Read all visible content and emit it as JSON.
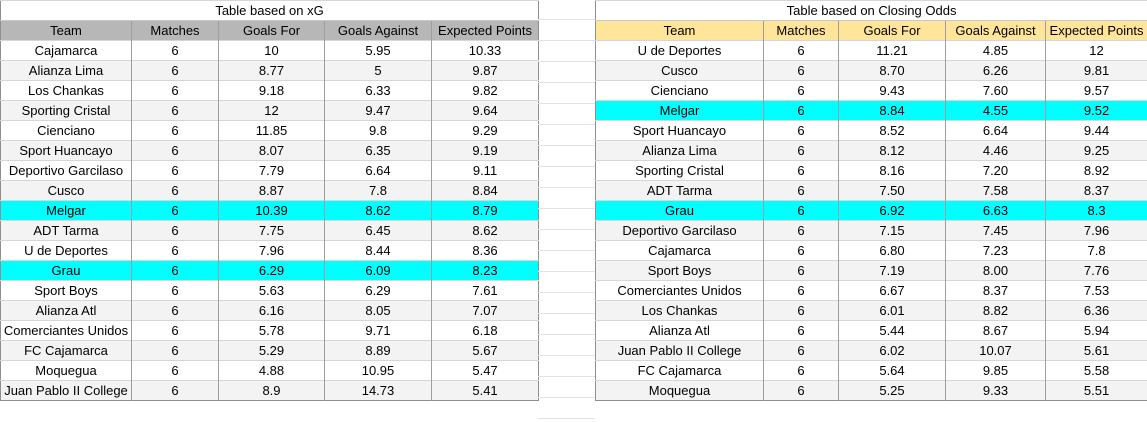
{
  "colors": {
    "highlight": "#00ffff",
    "stripe": "#f3f3f3",
    "xg_header_bg": "#b7b7b7",
    "odds_header_bg": "#ffe599"
  },
  "tables": [
    {
      "title": "Table based on xG",
      "header_bg": "#b7b7b7",
      "columns": [
        "Team",
        "Matches",
        "Goals For",
        "Goals Against",
        "Expected Points"
      ],
      "rows": [
        {
          "team": "Cajamarca",
          "matches": "6",
          "goals_for": "10",
          "goals_against": "5.95",
          "expected_points": "10.33",
          "highlight": false
        },
        {
          "team": "Alianza Lima",
          "matches": "6",
          "goals_for": "8.77",
          "goals_against": "5",
          "expected_points": "9.87",
          "highlight": false
        },
        {
          "team": "Los Chankas",
          "matches": "6",
          "goals_for": "9.18",
          "goals_against": "6.33",
          "expected_points": "9.82",
          "highlight": false
        },
        {
          "team": "Sporting Cristal",
          "matches": "6",
          "goals_for": "12",
          "goals_against": "9.47",
          "expected_points": "9.64",
          "highlight": false
        },
        {
          "team": "Cienciano",
          "matches": "6",
          "goals_for": "11.85",
          "goals_against": "9.8",
          "expected_points": "9.29",
          "highlight": false
        },
        {
          "team": "Sport Huancayo",
          "matches": "6",
          "goals_for": "8.07",
          "goals_against": "6.35",
          "expected_points": "9.19",
          "highlight": false
        },
        {
          "team": "Deportivo Garcilaso",
          "matches": "6",
          "goals_for": "7.79",
          "goals_against": "6.64",
          "expected_points": "9.11",
          "highlight": false
        },
        {
          "team": "Cusco",
          "matches": "6",
          "goals_for": "8.87",
          "goals_against": "7.8",
          "expected_points": "8.84",
          "highlight": false
        },
        {
          "team": "Melgar",
          "matches": "6",
          "goals_for": "10.39",
          "goals_against": "8.62",
          "expected_points": "8.79",
          "highlight": true
        },
        {
          "team": "ADT Tarma",
          "matches": "6",
          "goals_for": "7.75",
          "goals_against": "6.45",
          "expected_points": "8.62",
          "highlight": false
        },
        {
          "team": "U de Deportes",
          "matches": "6",
          "goals_for": "7.96",
          "goals_against": "8.44",
          "expected_points": "8.36",
          "highlight": false
        },
        {
          "team": "Grau",
          "matches": "6",
          "goals_for": "6.29",
          "goals_against": "6.09",
          "expected_points": "8.23",
          "highlight": true
        },
        {
          "team": "Sport Boys",
          "matches": "6",
          "goals_for": "5.63",
          "goals_against": "6.29",
          "expected_points": "7.61",
          "highlight": false
        },
        {
          "team": "Alianza Atl",
          "matches": "6",
          "goals_for": "6.16",
          "goals_against": "8.05",
          "expected_points": "7.07",
          "highlight": false
        },
        {
          "team": "Comerciantes Unidos",
          "matches": "6",
          "goals_for": "5.78",
          "goals_against": "9.71",
          "expected_points": "6.18",
          "highlight": false
        },
        {
          "team": "FC Cajamarca",
          "matches": "6",
          "goals_for": "5.29",
          "goals_against": "8.89",
          "expected_points": "5.67",
          "highlight": false
        },
        {
          "team": "Moquegua",
          "matches": "6",
          "goals_for": "4.88",
          "goals_against": "10.95",
          "expected_points": "5.47",
          "highlight": false
        },
        {
          "team": "Juan Pablo II College",
          "matches": "6",
          "goals_for": "8.9",
          "goals_against": "14.73",
          "expected_points": "5.41",
          "highlight": false
        }
      ]
    },
    {
      "title": "Table based on Closing Odds",
      "header_bg": "#ffe599",
      "columns": [
        "Team",
        "Matches",
        "Goals For",
        "Goals Against",
        "Expected Points"
      ],
      "rows": [
        {
          "team": "U de Deportes",
          "matches": "6",
          "goals_for": "11.21",
          "goals_against": "4.85",
          "expected_points": "12",
          "highlight": false
        },
        {
          "team": "Cusco",
          "matches": "6",
          "goals_for": "8.70",
          "goals_against": "6.26",
          "expected_points": "9.81",
          "highlight": false
        },
        {
          "team": "Cienciano",
          "matches": "6",
          "goals_for": "9.43",
          "goals_against": "7.60",
          "expected_points": "9.57",
          "highlight": false
        },
        {
          "team": "Melgar",
          "matches": "6",
          "goals_for": "8.84",
          "goals_against": "4.55",
          "expected_points": "9.52",
          "highlight": true
        },
        {
          "team": "Sport Huancayo",
          "matches": "6",
          "goals_for": "8.52",
          "goals_against": "6.64",
          "expected_points": "9.44",
          "highlight": false
        },
        {
          "team": "Alianza Lima",
          "matches": "6",
          "goals_for": "8.12",
          "goals_against": "4.46",
          "expected_points": "9.25",
          "highlight": false
        },
        {
          "team": "Sporting Cristal",
          "matches": "6",
          "goals_for": "8.16",
          "goals_against": "7.20",
          "expected_points": "8.92",
          "highlight": false
        },
        {
          "team": "ADT Tarma",
          "matches": "6",
          "goals_for": "7.50",
          "goals_against": "7.58",
          "expected_points": "8.37",
          "highlight": false
        },
        {
          "team": "Grau",
          "matches": "6",
          "goals_for": "6.92",
          "goals_against": "6.63",
          "expected_points": "8.3",
          "highlight": true
        },
        {
          "team": "Deportivo Garcilaso",
          "matches": "6",
          "goals_for": "7.15",
          "goals_against": "7.45",
          "expected_points": "7.96",
          "highlight": false
        },
        {
          "team": "Cajamarca",
          "matches": "6",
          "goals_for": "6.80",
          "goals_against": "7.23",
          "expected_points": "7.8",
          "highlight": false
        },
        {
          "team": "Sport Boys",
          "matches": "6",
          "goals_for": "7.19",
          "goals_against": "8.00",
          "expected_points": "7.76",
          "highlight": false
        },
        {
          "team": "Comerciantes Unidos",
          "matches": "6",
          "goals_for": "6.67",
          "goals_against": "8.37",
          "expected_points": "7.53",
          "highlight": false
        },
        {
          "team": "Los Chankas",
          "matches": "6",
          "goals_for": "6.01",
          "goals_against": "8.82",
          "expected_points": "6.36",
          "highlight": false
        },
        {
          "team": "Alianza Atl",
          "matches": "6",
          "goals_for": "5.44",
          "goals_against": "8.67",
          "expected_points": "5.94",
          "highlight": false
        },
        {
          "team": "Juan Pablo II College",
          "matches": "6",
          "goals_for": "6.02",
          "goals_against": "10.07",
          "expected_points": "5.61",
          "highlight": false
        },
        {
          "team": "FC Cajamarca",
          "matches": "6",
          "goals_for": "5.64",
          "goals_against": "9.85",
          "expected_points": "5.58",
          "highlight": false
        },
        {
          "team": "Moquegua",
          "matches": "6",
          "goals_for": "5.25",
          "goals_against": "9.33",
          "expected_points": "5.51",
          "highlight": false
        }
      ]
    }
  ]
}
